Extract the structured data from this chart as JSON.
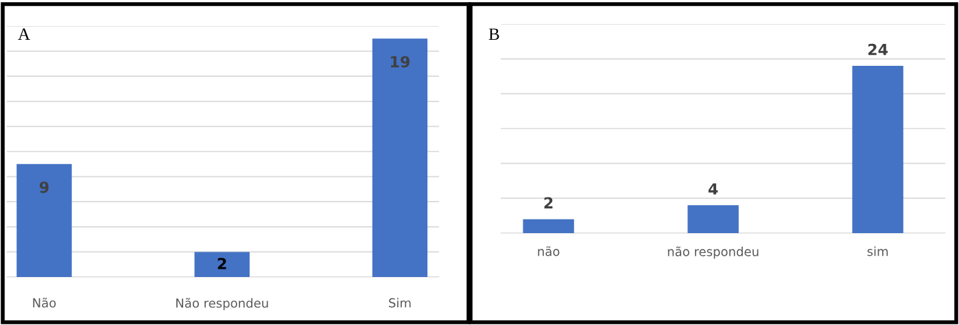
{
  "chart_data": [
    {
      "type": "bar",
      "title": "A",
      "categories": [
        "Não",
        "Não respondeu",
        "Sim"
      ],
      "values": [
        9,
        2,
        19
      ],
      "color": "#4472c4",
      "data_labels": true,
      "grid": "y",
      "tick_labels": "x",
      "ylim": [
        0,
        20
      ],
      "yticks": [
        {
          "value": 0,
          "label": null
        },
        {
          "value": 2,
          "label": null
        },
        {
          "value": 4,
          "label": null
        },
        {
          "value": 6,
          "label": null
        },
        {
          "value": 8,
          "label": null
        },
        {
          "value": 10,
          "label": null
        },
        {
          "value": 12,
          "label": null
        },
        {
          "value": 14,
          "label": null
        },
        {
          "value": 16,
          "label": null
        },
        {
          "value": 18,
          "label": null
        },
        {
          "value": 20,
          "label": null
        }
      ]
    },
    {
      "type": "bar",
      "title": "B",
      "categories": [
        "não",
        "não respondeu",
        "sim"
      ],
      "values": [
        2,
        4,
        24
      ],
      "color": "#4472c4",
      "data_labels": true,
      "grid": "y",
      "tick_labels": "x",
      "ylim": [
        0,
        30
      ],
      "yticks": [
        {
          "value": 0,
          "label": null
        },
        {
          "value": 5,
          "label": null
        },
        {
          "value": 10,
          "label": null
        },
        {
          "value": 15,
          "label": null
        },
        {
          "value": 20,
          "label": null
        },
        {
          "value": 25,
          "label": null
        },
        {
          "value": 30,
          "label": null
        }
      ]
    }
  ]
}
